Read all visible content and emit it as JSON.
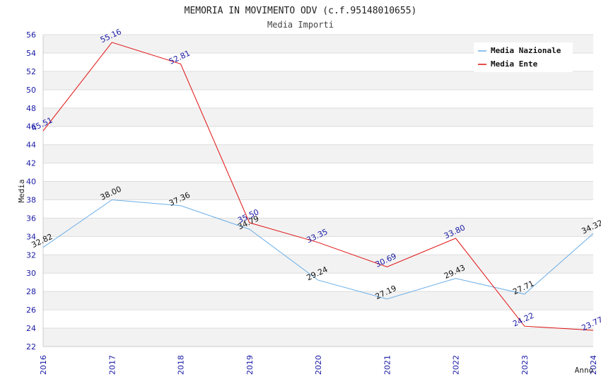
{
  "chart_data": {
    "type": "line",
    "title": "MEMORIA IN MOVIMENTO ODV (c.f.95148010655)",
    "subtitle": "Media Importi",
    "xlabel": "Anno",
    "ylabel": "Media",
    "categories": [
      "2016",
      "2017",
      "2018",
      "2019",
      "2020",
      "2021",
      "2022",
      "2023",
      "2024"
    ],
    "ylim": [
      22,
      56
    ],
    "yticks": [
      22,
      24,
      26,
      28,
      30,
      32,
      34,
      36,
      38,
      40,
      42,
      44,
      46,
      48,
      50,
      52,
      54,
      56
    ],
    "grid": true,
    "legend_position": "top-right",
    "series": [
      {
        "name": "Media Nazionale",
        "color": "#6aaee8",
        "values": [
          32.82,
          38.0,
          37.36,
          34.79,
          29.24,
          27.19,
          29.43,
          27.71,
          34.32
        ],
        "labels": [
          "32.82",
          "38.00",
          "37.36",
          "34.79",
          "29.24",
          "27.19",
          "29.43",
          "27.71",
          "34.32"
        ]
      },
      {
        "name": "Media Ente",
        "color": "#e01010",
        "values": [
          45.51,
          55.16,
          52.81,
          35.5,
          33.35,
          30.69,
          33.8,
          24.22,
          23.77
        ],
        "labels": [
          "45.51",
          "55.16",
          "52.81",
          "35.50",
          "33.35",
          "30.69",
          "33.80",
          "24.22",
          "23.77"
        ]
      }
    ]
  }
}
